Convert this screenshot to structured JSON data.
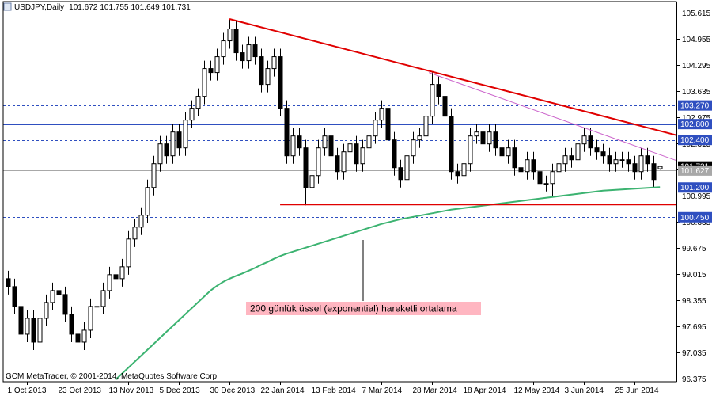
{
  "chart_data": {
    "type": "candlestick",
    "title": "USDJPY,Daily",
    "footer": "GCM MetaTrader, © 2001-2014, MetaQuotes Software Corp.",
    "annotation": "200 günlük üssel (exponential) hareketli ortalama",
    "categories": [
      null,
      null,
      null,
      "1 Oct 2013",
      null,
      null,
      null,
      null,
      null,
      null,
      null,
      "23 Oct 2013",
      null,
      null,
      null,
      null,
      null,
      null,
      null,
      "13 Nov 2013",
      null,
      null,
      null,
      null,
      null,
      null,
      null,
      "5 Dec 2013",
      null,
      null,
      null,
      null,
      null,
      null,
      null,
      "30 Dec 2013",
      null,
      null,
      null,
      null,
      null,
      null,
      null,
      "22 Jan 2014",
      null,
      null,
      null,
      null,
      null,
      null,
      null,
      "13 Feb 2014",
      null,
      null,
      null,
      null,
      null,
      null,
      null,
      "7 Mar 2014",
      null,
      null,
      null,
      null,
      null,
      null,
      null,
      "28 Mar 2014",
      null,
      null,
      null,
      null,
      null,
      null,
      null,
      "18 Apr 2014",
      null,
      null,
      null,
      null,
      null,
      null,
      null,
      "12 May 2014",
      null,
      null,
      null,
      null,
      null,
      null,
      null,
      "3 Jun 2014",
      null,
      null,
      null,
      null,
      null,
      null,
      null,
      "25 Jun 2014",
      null,
      null,
      null,
      null
    ],
    "open": [
      98.9,
      98.7,
      98.2,
      97.5,
      97.9,
      97.3,
      97.9,
      98.3,
      98.6,
      98.5,
      98.0,
      97.5,
      97.3,
      97.6,
      98.2,
      98.2,
      98.6,
      99.0,
      98.9,
      99.2,
      99.9,
      100.2,
      100.5,
      101.2,
      101.8,
      102.3,
      102.0,
      102.6,
      102.2,
      102.9,
      103.2,
      103.5,
      104.2,
      104.1,
      104.5,
      104.9,
      105.2,
      104.6,
      104.4,
      104.8,
      104.5,
      103.8,
      104.2,
      104.5,
      103.2,
      102.0,
      102.5,
      102.2,
      101.2,
      101.5,
      102.2,
      102.5,
      102.0,
      101.6,
      102.1,
      102.3,
      101.8,
      102.2,
      102.5,
      102.9,
      103.2,
      102.4,
      101.7,
      101.4,
      102.0,
      102.4,
      102.5,
      103.0,
      103.8,
      103.5,
      103.0,
      101.6,
      101.5,
      101.8,
      102.5,
      102.6,
      102.3,
      102.6,
      102.2,
      102.0,
      102.2,
      101.7,
      101.6,
      101.9,
      101.6,
      101.3,
      101.3,
      101.6,
      101.8,
      102.0,
      101.9,
      102.3,
      102.5,
      102.2,
      102.1,
      102.0,
      101.8,
      101.9,
      101.9,
      101.8,
      101.6,
      102.0,
      101.8,
      101.672
    ],
    "high": [
      99.1,
      98.9,
      98.4,
      98.1,
      98.1,
      98.1,
      98.5,
      98.8,
      98.8,
      98.7,
      98.2,
      97.7,
      97.8,
      98.4,
      98.4,
      98.8,
      99.2,
      99.2,
      99.4,
      100.1,
      100.4,
      100.7,
      101.4,
      102.0,
      102.5,
      102.5,
      102.8,
      102.8,
      103.1,
      103.4,
      103.7,
      104.4,
      104.4,
      104.7,
      105.1,
      105.45,
      105.4,
      104.8,
      105.0,
      105.0,
      104.7,
      104.4,
      104.7,
      104.7,
      103.4,
      102.7,
      102.7,
      102.4,
      101.7,
      102.4,
      102.7,
      102.7,
      102.2,
      102.3,
      102.5,
      102.5,
      102.4,
      102.7,
      103.1,
      103.4,
      103.4,
      102.6,
      101.9,
      102.2,
      102.6,
      102.7,
      103.2,
      104.1,
      104.0,
      103.7,
      103.2,
      101.8,
      102.0,
      102.7,
      102.8,
      102.8,
      102.8,
      102.8,
      102.4,
      102.4,
      102.4,
      101.9,
      102.1,
      102.1,
      101.8,
      101.5,
      101.8,
      102.0,
      102.2,
      102.2,
      102.75,
      102.7,
      102.7,
      102.4,
      102.3,
      102.2,
      102.1,
      102.1,
      102.1,
      102.0,
      102.2,
      102.2,
      102.0,
      101.755
    ],
    "low": [
      98.5,
      98.0,
      96.9,
      97.3,
      97.1,
      97.1,
      97.7,
      98.1,
      98.3,
      97.8,
      97.3,
      97.05,
      97.1,
      97.4,
      98.0,
      98.0,
      98.4,
      98.7,
      98.7,
      99.0,
      99.7,
      100.0,
      100.3,
      101.0,
      101.6,
      101.8,
      101.8,
      102.0,
      102.0,
      102.7,
      103.0,
      103.3,
      103.9,
      103.9,
      104.3,
      104.7,
      104.4,
      104.2,
      104.2,
      104.3,
      103.6,
      103.6,
      104.0,
      103.0,
      101.8,
      101.8,
      102.0,
      100.75,
      101.0,
      101.3,
      102.0,
      101.8,
      101.4,
      101.4,
      101.9,
      101.6,
      101.6,
      102.0,
      102.3,
      102.7,
      102.2,
      101.5,
      101.2,
      101.2,
      101.8,
      102.2,
      102.3,
      102.8,
      103.3,
      102.8,
      101.4,
      101.3,
      101.3,
      101.6,
      102.3,
      102.1,
      102.1,
      102.0,
      101.8,
      101.8,
      101.5,
      101.4,
      101.4,
      101.4,
      101.1,
      101.1,
      100.95,
      101.4,
      101.6,
      101.7,
      101.7,
      102.1,
      102.0,
      101.9,
      101.8,
      101.6,
      101.6,
      101.7,
      101.6,
      101.4,
      101.4,
      101.6,
      101.2,
      101.649
    ],
    "close": [
      98.7,
      98.2,
      97.5,
      97.9,
      97.3,
      97.9,
      98.3,
      98.6,
      98.5,
      98.0,
      97.5,
      97.3,
      97.6,
      98.2,
      98.2,
      98.6,
      99.0,
      98.9,
      99.2,
      99.9,
      100.2,
      100.5,
      101.2,
      101.8,
      102.3,
      102.0,
      102.6,
      102.2,
      102.9,
      103.2,
      103.5,
      104.2,
      104.1,
      104.5,
      104.9,
      105.2,
      104.6,
      104.4,
      104.8,
      104.5,
      103.8,
      104.2,
      104.5,
      103.2,
      102.0,
      102.5,
      102.2,
      101.2,
      101.5,
      102.2,
      102.5,
      102.0,
      101.6,
      102.1,
      102.3,
      101.8,
      102.2,
      102.5,
      102.9,
      103.2,
      102.4,
      101.7,
      101.4,
      102.0,
      102.4,
      102.5,
      103.0,
      103.8,
      103.5,
      103.0,
      101.6,
      101.5,
      101.8,
      102.5,
      102.6,
      102.3,
      102.6,
      102.2,
      102.0,
      102.2,
      101.7,
      101.6,
      101.9,
      101.6,
      101.3,
      101.3,
      101.6,
      101.8,
      102.0,
      101.9,
      102.3,
      102.5,
      102.2,
      102.1,
      102.0,
      101.8,
      101.9,
      101.9,
      101.8,
      101.6,
      102.0,
      101.8,
      101.4,
      101.731
    ],
    "ema": {
      "color": "#3cb371",
      "values": [
        null,
        null,
        null,
        null,
        null,
        null,
        null,
        null,
        null,
        null,
        null,
        null,
        null,
        null,
        null,
        null,
        null,
        96.35,
        96.5,
        96.65,
        96.8,
        96.95,
        97.1,
        97.25,
        97.4,
        97.55,
        97.7,
        97.85,
        98.0,
        98.15,
        98.3,
        98.45,
        98.6,
        98.72,
        98.82,
        98.9,
        98.97,
        99.03,
        99.1,
        99.17,
        99.25,
        99.32,
        99.4,
        99.47,
        99.53,
        99.58,
        99.63,
        99.68,
        99.73,
        99.78,
        99.83,
        99.88,
        99.93,
        99.98,
        100.03,
        100.08,
        100.13,
        100.18,
        100.23,
        100.28,
        100.32,
        100.36,
        100.4,
        100.43,
        100.46,
        100.49,
        100.52,
        100.55,
        100.58,
        100.61,
        100.64,
        100.66,
        100.68,
        100.7,
        100.72,
        100.74,
        100.76,
        100.78,
        100.8,
        100.82,
        100.84,
        100.86,
        100.88,
        100.9,
        100.92,
        100.94,
        100.96,
        100.98,
        101.0,
        101.02,
        101.04,
        101.06,
        101.08,
        101.1,
        101.12,
        101.13,
        101.14,
        101.15,
        101.16,
        101.17,
        101.18,
        101.19,
        101.2,
        101.21
      ]
    },
    "xlim": [
      -0.75,
      105.6
    ],
    "ylim": [
      96.3,
      105.89
    ],
    "yticks": [
      105.615,
      104.955,
      104.295,
      103.635,
      102.975,
      102.315,
      101.655,
      100.995,
      100.335,
      99.675,
      99.015,
      98.355,
      97.695,
      97.035,
      96.375
    ],
    "levels": [
      {
        "value": 103.27,
        "label": "103.270",
        "color": "#2f4fc0",
        "style": "dashed"
      },
      {
        "value": 102.8,
        "label": "102.800",
        "color": "#2f4fc0",
        "style": "solid"
      },
      {
        "value": 102.4,
        "label": "102.400",
        "color": "#2f4fc0",
        "style": "dashed"
      },
      {
        "value": 101.731,
        "color": "#000000",
        "style": "none"
      },
      {
        "value": 101.627,
        "color": "#a8a8a8",
        "style": "solid"
      },
      {
        "value": 101.2,
        "label": "101.200",
        "color": "#2f4fc0",
        "style": "solid"
      },
      {
        "value": 100.45,
        "label": "100.450",
        "color": "#2f4fc0",
        "style": "dashed"
      }
    ],
    "trendlines": [
      {
        "color": "#e00000",
        "width": 2,
        "x": [
          35,
          105.6
        ],
        "y": [
          105.45,
          102.52
        ]
      },
      {
        "color": "#cc66cc",
        "width": 1,
        "x": [
          66.5,
          105.6
        ],
        "y": [
          104.1,
          101.88
        ]
      },
      {
        "color": "#e00000",
        "width": 2,
        "x": [
          43,
          105.6
        ],
        "y": [
          100.77,
          100.77
        ]
      }
    ]
  }
}
